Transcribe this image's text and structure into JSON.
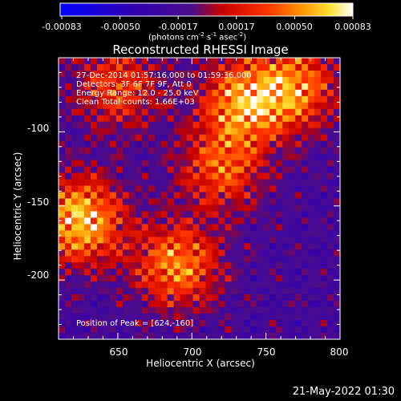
{
  "colorbar": {
    "ticks": [
      "-0.00083",
      "-0.00050",
      "-0.00017",
      "0.00017",
      "0.00050",
      "0.00083"
    ],
    "unit": {
      "prefix": "(photons cm",
      "exp1": "-2",
      "mid1": " s",
      "exp2": "-1",
      "mid2": " asec",
      "exp3": "-2",
      "suffix": ")"
    }
  },
  "chart_data": {
    "type": "heatmap",
    "title": "Reconstructed RHESSI Image",
    "xlabel": "Heliocentric X (arcsec)",
    "ylabel": "Heliocentric Y (arcsec)",
    "x_ticks": [
      650,
      700,
      750,
      800
    ],
    "y_ticks": [
      -100,
      -150,
      -200
    ],
    "xlim": [
      610,
      800
    ],
    "ylim": [
      -240,
      -50
    ],
    "value_range": [
      -0.00083,
      0.00083
    ],
    "colormap": "RHESSI color table (blue - purple - red - orange - yellow - white)",
    "peak_position": [
      624,
      -160
    ],
    "bright_regions": [
      {
        "x": 625,
        "y": -160,
        "level": 0.95
      },
      {
        "x": 690,
        "y": -190,
        "level": 0.75
      },
      {
        "x": 735,
        "y": -80,
        "level": 0.8
      },
      {
        "x": 770,
        "y": -70,
        "level": 0.7
      },
      {
        "x": 650,
        "y": -70,
        "level": 0.55
      },
      {
        "x": 720,
        "y": -125,
        "level": 0.6
      }
    ]
  },
  "info": {
    "line1": "27-Dec-2014 01:57:16.000 to 01:59:36.000",
    "line2": "Detectors: 3F 6F 7F 9F, Att 0",
    "line3": "Energy Range: 12.0 - 25.0 keV",
    "line4": "Clean    Total counts: 1.66E+03"
  },
  "peak_text": "Position of Peak = [624,-160]",
  "timestamp": "21-May-2022 01:30"
}
